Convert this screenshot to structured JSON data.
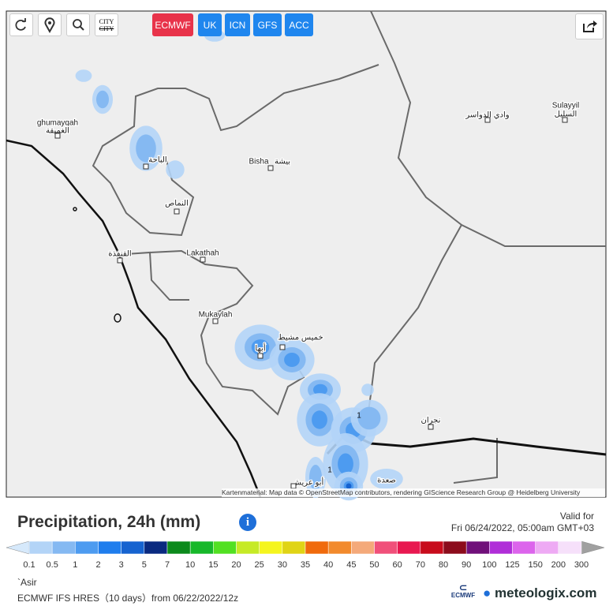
{
  "toolbar": {
    "city_icon": "CITY",
    "models": [
      "ECMWF",
      "UK",
      "ICN",
      "GFS",
      "ACC"
    ]
  },
  "map": {
    "places": [
      "ghumayqah",
      "الغميقة",
      "الباحة",
      "Bisha",
      "بيشة",
      "وادي الدواسر",
      "Sulayyil",
      "السليل",
      "النماص",
      "القنفذة",
      "Lakathah",
      "Mukaylah",
      "خميس مشيط",
      "أبها",
      "نجران",
      "صعدة",
      "أبو عريش"
    ],
    "contour_labels": [
      "1",
      "1"
    ],
    "attribution": "Kartenmaterial: Map data © OpenStreetMap contributors, rendering GIScience Research Group @ Heidelberg University"
  },
  "legend": {
    "title": "Precipitation, 24h (mm)",
    "valid_label": "Valid for",
    "valid_time": "Fri 06/24/2022, 05:00am GMT+03",
    "ticks": [
      0.1,
      0.5,
      1,
      2,
      3,
      5,
      7,
      10,
      15,
      20,
      25,
      30,
      35,
      40,
      45,
      50,
      60,
      70,
      80,
      90,
      100,
      125,
      150,
      200,
      300
    ],
    "under_color": "#d6e9fb",
    "over_color": "#a0a0a0",
    "colors": [
      "#b3d4f7",
      "#85b9f2",
      "#4d9bf0",
      "#1f7ded",
      "#1663d0",
      "#0a2a80",
      "#0c8a1c",
      "#17b82a",
      "#52e022",
      "#c6ea26",
      "#f5f51e",
      "#e0d415",
      "#f06a0c",
      "#f28a2c",
      "#f4a97a",
      "#f0507a",
      "#e81850",
      "#c80c1c",
      "#8c0c1c",
      "#70107a",
      "#b02ed8",
      "#dc64ec",
      "#eeaaf4",
      "#f6e0fa"
    ]
  },
  "footer": {
    "region": "`Asir",
    "model_run": "ECMWF IFS HRES（10 days）from 06/22/2022/12z",
    "logo_ecmwf": "ECMWF",
    "logo_meteologix": "meteologix.com"
  }
}
